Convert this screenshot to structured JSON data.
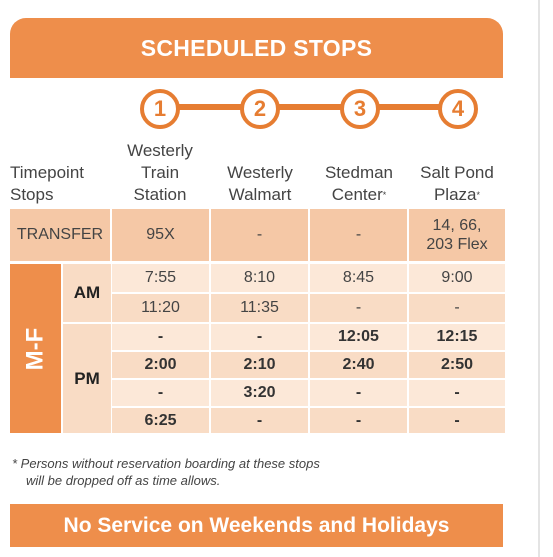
{
  "title": "SCHEDULED STOPS",
  "stop_numbers": [
    "1",
    "2",
    "3",
    "4"
  ],
  "columns": {
    "timepoint": [
      "Timepoint",
      "Stops"
    ],
    "stops": [
      {
        "lines": [
          "Westerly",
          "Train",
          "Station"
        ],
        "asterisk": ""
      },
      {
        "lines": [
          "Westerly",
          "Walmart"
        ],
        "asterisk": ""
      },
      {
        "lines": [
          "Stedman",
          "Center"
        ],
        "asterisk": "*"
      },
      {
        "lines": [
          "Salt Pond",
          "Plaza"
        ],
        "asterisk": "*"
      }
    ]
  },
  "transfer": {
    "label": "TRANSFER",
    "values": [
      "95X",
      "-",
      "-",
      "14, 66,\n203 Flex"
    ]
  },
  "days_label": "M-F",
  "periods": {
    "am": "AM",
    "pm": "PM"
  },
  "rows": [
    {
      "period": "AM",
      "bold": false,
      "values": [
        "7:55",
        "8:10",
        "8:45",
        "9:00"
      ]
    },
    {
      "period": "AM",
      "bold": false,
      "values": [
        "11:20",
        "11:35",
        "-",
        "-"
      ]
    },
    {
      "period": "PM",
      "bold": true,
      "values": [
        "-",
        "-",
        "12:05",
        "12:15"
      ]
    },
    {
      "period": "PM",
      "bold": true,
      "values": [
        "2:00",
        "2:10",
        "2:40",
        "2:50"
      ]
    },
    {
      "period": "PM",
      "bold": true,
      "values": [
        "-",
        "3:20",
        "-",
        "-"
      ]
    },
    {
      "period": "PM",
      "bold": true,
      "values": [
        "6:25",
        "-",
        "-",
        "-"
      ]
    }
  ],
  "footnote": {
    "line1": "*  Persons without reservation boarding at these stops",
    "line2": "will be dropped off as time allows."
  },
  "footer": "No Service on Weekends and Holidays",
  "colors": {
    "accent": "#ee8e4b",
    "line": "#e67d32",
    "transfer_bg": "#f5c8a6",
    "row_light": "#fce8d8",
    "row_dark": "#f9dcc5"
  }
}
